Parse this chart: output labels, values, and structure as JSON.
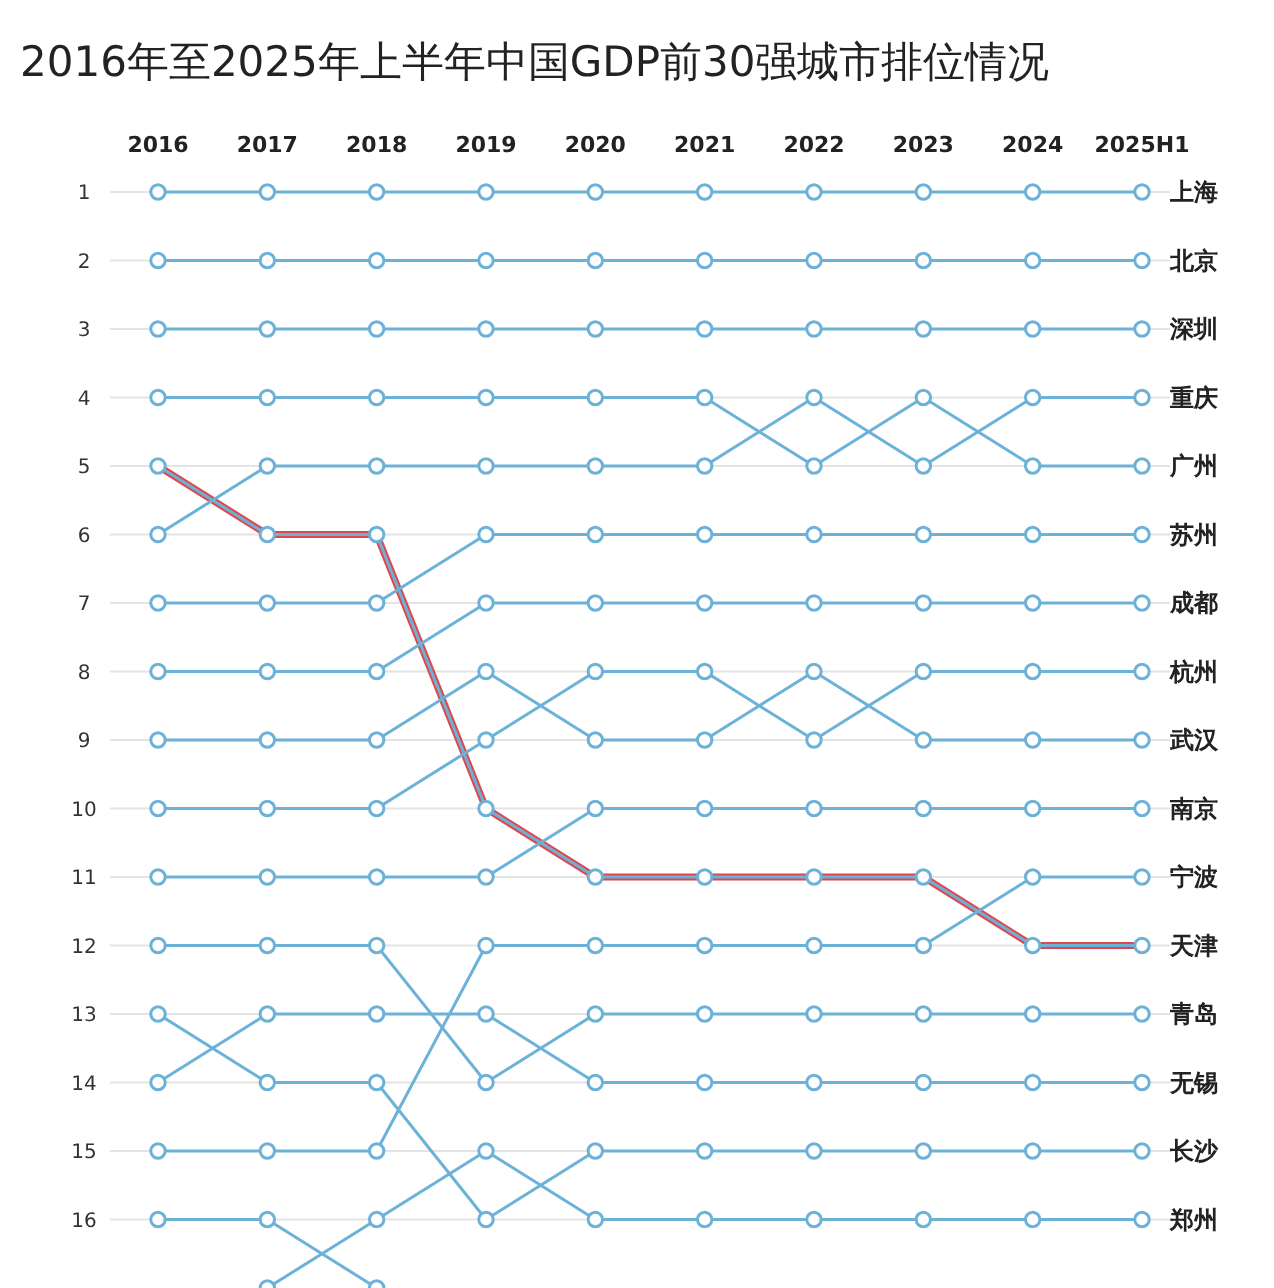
{
  "chart_data": {
    "type": "line",
    "title": "2016年至2025年上半年中国GDP前30强城市排位情况",
    "categories": [
      "2016",
      "2017",
      "2018",
      "2019",
      "2020",
      "2021",
      "2022",
      "2023",
      "2024",
      "2025H1"
    ],
    "ylim": [
      17,
      1
    ],
    "yticks": [
      1,
      2,
      3,
      4,
      5,
      6,
      7,
      8,
      9,
      10,
      11,
      12,
      13,
      14,
      15,
      16
    ],
    "grid": "y",
    "marker": "circle",
    "series": [
      {
        "color": "#e0474c",
        "marker": "none",
        "values": [
          5,
          6,
          6,
          10,
          11,
          11,
          11,
          11,
          12,
          12
        ]
      },
      {
        "name": "上海",
        "color": "#6cb2d8",
        "values": [
          1,
          1,
          1,
          1,
          1,
          1,
          1,
          1,
          1,
          1
        ]
      },
      {
        "name": "北京",
        "color": "#6cb2d8",
        "values": [
          2,
          2,
          2,
          2,
          2,
          2,
          2,
          2,
          2,
          2
        ]
      },
      {
        "name": "深圳",
        "color": "#6cb2d8",
        "values": [
          3,
          3,
          3,
          3,
          3,
          3,
          3,
          3,
          3,
          3
        ]
      },
      {
        "name": "重庆",
        "color": "#6cb2d8",
        "values": [
          6,
          5,
          5,
          5,
          5,
          5,
          4,
          5,
          4,
          4
        ]
      },
      {
        "name": "广州",
        "color": "#6cb2d8",
        "values": [
          4,
          4,
          4,
          4,
          4,
          4,
          5,
          4,
          5,
          5
        ]
      },
      {
        "name": "苏州",
        "color": "#6cb2d8",
        "values": [
          7,
          7,
          7,
          6,
          6,
          6,
          6,
          6,
          6,
          6
        ]
      },
      {
        "name": "成都",
        "color": "#6cb2d8",
        "values": [
          8,
          8,
          8,
          7,
          7,
          7,
          7,
          7,
          7,
          7
        ]
      },
      {
        "name": "杭州",
        "color": "#6cb2d8",
        "values": [
          10,
          10,
          10,
          9,
          8,
          8,
          9,
          8,
          8,
          8
        ]
      },
      {
        "name": "武汉",
        "color": "#6cb2d8",
        "values": [
          9,
          9,
          9,
          8,
          9,
          9,
          8,
          9,
          9,
          9
        ]
      },
      {
        "name": "南京",
        "color": "#6cb2d8",
        "values": [
          11,
          11,
          11,
          11,
          10,
          10,
          10,
          10,
          10,
          10
        ]
      },
      {
        "name": "宁波",
        "color": "#6cb2d8",
        "values": [
          15,
          15,
          15,
          12,
          12,
          12,
          12,
          12,
          11,
          11
        ]
      },
      {
        "name": "天津",
        "color": "#6cb2d8",
        "values": [
          5,
          6,
          6,
          10,
          11,
          11,
          11,
          11,
          12,
          12
        ]
      },
      {
        "name": "青岛",
        "color": "#6cb2d8",
        "values": [
          12,
          12,
          12,
          14,
          13,
          13,
          13,
          13,
          13,
          13
        ]
      },
      {
        "name": "无锡",
        "color": "#6cb2d8",
        "values": [
          14,
          13,
          13,
          13,
          14,
          14,
          14,
          14,
          14,
          14
        ]
      },
      {
        "name": "长沙",
        "color": "#6cb2d8",
        "values": [
          13,
          14,
          14,
          16,
          15,
          15,
          15,
          15,
          15,
          15
        ]
      },
      {
        "name": "郑州",
        "color": "#6cb2d8",
        "values": [
          null,
          17,
          16,
          15,
          16,
          16,
          16,
          16,
          16,
          16
        ]
      },
      {
        "color": "#6cb2d8",
        "values": [
          16,
          16,
          17,
          null,
          null,
          null,
          null,
          null,
          null,
          null
        ]
      }
    ]
  }
}
